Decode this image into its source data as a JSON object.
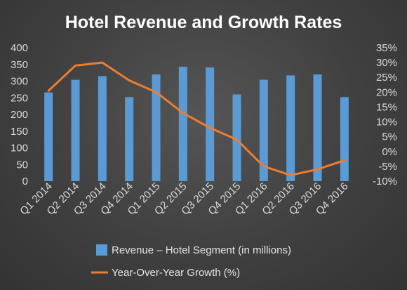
{
  "chart_data": {
    "type": "bar",
    "title": "Hotel Revenue and Growth Rates",
    "categories": [
      "Q1 2014",
      "Q2 2014",
      "Q3 2014",
      "Q4 2014",
      "Q1 2015",
      "Q2 2015",
      "Q3 2015",
      "Q4 2015",
      "Q1 2016",
      "Q2 2016",
      "Q3 2016",
      "Q4 2016"
    ],
    "series": [
      {
        "name": "Revenue – Hotel Segment (in millions)",
        "type": "bar",
        "axis": "left",
        "color": "#5b9bd5",
        "values": [
          266,
          304,
          315,
          252,
          320,
          343,
          341,
          260,
          304,
          317,
          320,
          252
        ]
      },
      {
        "name": "Year-Over-Year Growth (%)",
        "type": "line",
        "axis": "right",
        "color": "#ed7d31",
        "values": [
          20.5,
          29,
          30,
          24,
          20,
          13,
          8,
          4,
          -5,
          -8,
          -6,
          -3
        ]
      }
    ],
    "y_left": {
      "ylim": [
        0,
        400
      ],
      "ticks": [
        "0",
        "50",
        "100",
        "150",
        "200",
        "250",
        "300",
        "350",
        "400"
      ]
    },
    "y_right": {
      "ylim": [
        -10,
        35
      ],
      "ticks": [
        "-10%",
        "-5%",
        "0%",
        "5%",
        "10%",
        "15%",
        "20%",
        "25%",
        "30%",
        "35%"
      ]
    },
    "grid": false,
    "legend_position": "bottom"
  }
}
